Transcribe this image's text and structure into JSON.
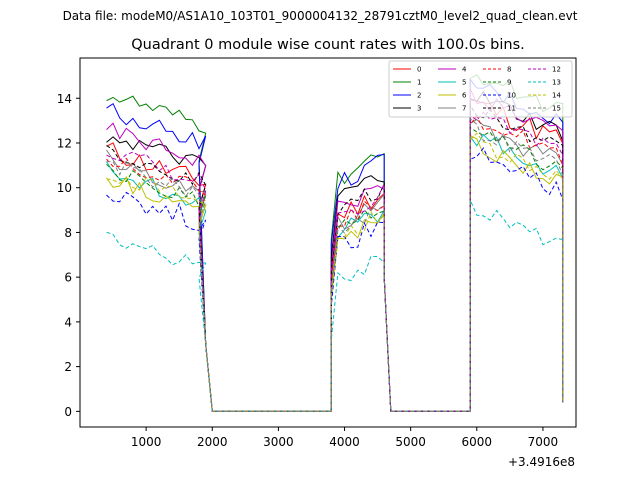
{
  "file_title": "Data file: modeM0/AS1A10_103T01_9000004132_28791cztM0_level2_quad_clean.evt",
  "chart_data": {
    "type": "line",
    "title": "Quadrant 0 module wise count rates with 100.0s bins.",
    "xlabel": "",
    "ylabel": "",
    "x_offset_label": "+3.4916e8",
    "xlim": [
      0,
      7500
    ],
    "ylim": [
      -0.7,
      15.8
    ],
    "x_ticks": [
      1000,
      2000,
      3000,
      4000,
      5000,
      6000,
      7000
    ],
    "y_ticks": [
      0,
      2,
      4,
      6,
      8,
      10,
      12,
      14
    ],
    "x_tick_labels": [
      "1000",
      "2000",
      "3000",
      "4000",
      "5000",
      "6000",
      "7000"
    ],
    "y_tick_labels": [
      "0",
      "2",
      "4",
      "6",
      "8",
      "10",
      "12",
      "14"
    ],
    "legend_position": "upper right",
    "legend_columns": 4,
    "segments": [
      {
        "x_start": 400,
        "n": 16,
        "step": 100
      },
      {
        "x_start": 3800,
        "n": 9,
        "step": 100
      },
      {
        "x_start": 5900,
        "n": 15,
        "step": 100
      }
    ],
    "gaps": [
      {
        "x": [
          1800,
          1900,
          2000,
          3800
        ],
        "y": [
          8.5,
          3.0,
          0.0,
          0.0
        ]
      },
      {
        "x": [
          4600,
          4700,
          5900
        ],
        "y": [
          6.0,
          0.0,
          0.0
        ]
      },
      {
        "x": [
          7300
        ],
        "y": [
          0.4
        ]
      }
    ],
    "series": [
      {
        "name": "0",
        "color": "#ff0000",
        "dash": "solid",
        "base": [
          10.8,
          9.2,
          13.0
        ],
        "noise": 0.5
      },
      {
        "name": "1",
        "color": "#008000",
        "dash": "solid",
        "base": [
          13.3,
          10.8,
          14.3
        ],
        "noise": 0.4
      },
      {
        "name": "2",
        "color": "#0000ff",
        "dash": "solid",
        "base": [
          12.6,
          10.6,
          13.8
        ],
        "noise": 0.4
      },
      {
        "name": "3",
        "color": "#000000",
        "dash": "solid",
        "base": [
          11.5,
          10.0,
          13.3
        ],
        "noise": 0.4
      },
      {
        "name": "4",
        "color": "#bf00bf",
        "dash": "solid",
        "base": [
          11.7,
          9.5,
          13.3
        ],
        "noise": 0.4
      },
      {
        "name": "5",
        "color": "#00bfbf",
        "dash": "solid",
        "base": [
          9.9,
          8.4,
          11.5
        ],
        "noise": 0.4
      },
      {
        "name": "6",
        "color": "#bfbf00",
        "dash": "solid",
        "base": [
          9.6,
          8.1,
          11.1
        ],
        "noise": 0.4
      },
      {
        "name": "7",
        "color": "#808080",
        "dash": "solid",
        "base": [
          10.4,
          8.7,
          12.0
        ],
        "noise": 0.5
      },
      {
        "name": "8",
        "color": "#ff0000",
        "dash": "dashed",
        "base": [
          10.5,
          8.9,
          12.3
        ],
        "noise": 0.4
      },
      {
        "name": "9",
        "color": "#008000",
        "dash": "dashed",
        "base": [
          9.9,
          8.5,
          11.7
        ],
        "noise": 0.4
      },
      {
        "name": "10",
        "color": "#0000ff",
        "dash": "dashed",
        "base": [
          9.0,
          7.8,
          10.7
        ],
        "noise": 0.5
      },
      {
        "name": "11",
        "color": "#000000",
        "dash": "dashed",
        "base": [
          10.8,
          9.4,
          12.6
        ],
        "noise": 0.4
      },
      {
        "name": "12",
        "color": "#bf00bf",
        "dash": "dashed",
        "base": [
          10.8,
          9.2,
          12.5
        ],
        "noise": 0.4
      },
      {
        "name": "13",
        "color": "#00bfbf",
        "dash": "dashed",
        "base": [
          7.0,
          6.3,
          8.3
        ],
        "noise": 0.35
      },
      {
        "name": "14",
        "color": "#bfbf00",
        "dash": "dashed",
        "base": [
          9.8,
          8.3,
          11.3
        ],
        "noise": 0.4
      },
      {
        "name": "15",
        "color": "#808080",
        "dash": "dashed",
        "base": [
          10.2,
          8.6,
          11.8
        ],
        "noise": 0.4
      }
    ]
  }
}
